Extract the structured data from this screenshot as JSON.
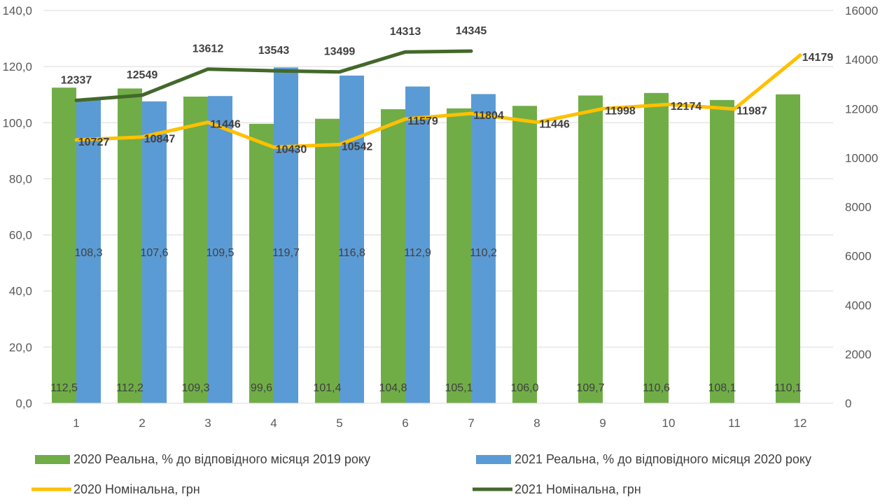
{
  "chart_data": {
    "type": "bar",
    "categories": [
      "1",
      "2",
      "3",
      "4",
      "5",
      "6",
      "7",
      "8",
      "9",
      "10",
      "11",
      "12"
    ],
    "y_left": {
      "ylim": [
        0,
        140
      ],
      "ticks": [
        "0,0",
        "20,0",
        "40,0",
        "60,0",
        "80,0",
        "100,0",
        "120,0",
        "140,0"
      ],
      "tick_values": [
        0,
        20,
        40,
        60,
        80,
        100,
        120,
        140
      ]
    },
    "y_right": {
      "ylim": [
        0,
        16000
      ],
      "ticks": [
        "0",
        "2000",
        "4000",
        "6000",
        "8000",
        "10000",
        "12000",
        "14000",
        "16000"
      ],
      "tick_values": [
        0,
        2000,
        4000,
        6000,
        8000,
        10000,
        12000,
        14000,
        16000
      ]
    },
    "grid": true,
    "series": [
      {
        "name": "2020 Реальна, % до відповідного  місяця 2019 року",
        "kind": "bar",
        "axis": "left",
        "color": "#70ad47",
        "values": [
          112.5,
          112.2,
          109.3,
          99.6,
          101.4,
          104.8,
          105.1,
          106.0,
          109.7,
          110.6,
          108.1,
          110.1
        ],
        "labels": [
          "112,5",
          "112,2",
          "109,3",
          "99,6",
          "101,4",
          "104,8",
          "105,1",
          "106,0",
          "109,7",
          "110,6",
          "108,1",
          "110,1"
        ]
      },
      {
        "name": "2021 Реальна, % до відповідного  місяця 2020 року",
        "kind": "bar",
        "axis": "left",
        "color": "#5b9bd5",
        "values": [
          108.3,
          107.6,
          109.5,
          119.7,
          116.8,
          112.9,
          110.2,
          null,
          null,
          null,
          null,
          null
        ],
        "labels": [
          "108,3",
          "107,6",
          "109,5",
          "119,7",
          "116,8",
          "112,9",
          "110,2",
          "",
          "",
          "",
          "",
          ""
        ]
      },
      {
        "name": "2020 Номінальна, грн",
        "kind": "line",
        "axis": "right",
        "color": "#ffc000",
        "values": [
          10727,
          10847,
          11446,
          10430,
          10542,
          11579,
          11804,
          11446,
          11998,
          12174,
          11987,
          14179
        ],
        "labels": [
          "10727",
          "10847",
          "11446",
          "10430",
          "10542",
          "11579",
          "11804",
          "11446",
          "11998",
          "12174",
          "11987",
          "14179"
        ]
      },
      {
        "name": "2021 Номінальна, грн",
        "kind": "line",
        "axis": "right",
        "color": "#43682b",
        "values": [
          12337,
          12549,
          13612,
          13543,
          13499,
          14313,
          14345,
          null,
          null,
          null,
          null,
          null
        ],
        "labels": [
          "12337",
          "12549",
          "13612",
          "13543",
          "13499",
          "14313",
          "14345",
          "",
          "",
          "",
          "",
          ""
        ]
      }
    ]
  }
}
